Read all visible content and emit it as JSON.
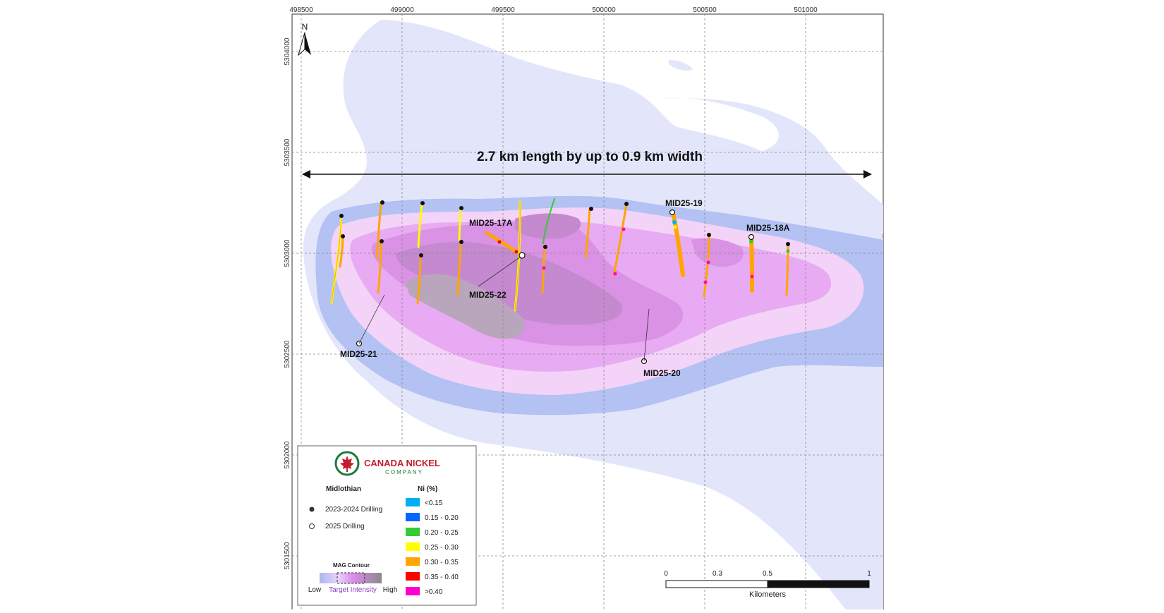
{
  "map": {
    "headline": "2.7 km length by up to 0.9 km width",
    "north_label": "N",
    "easting_ticks": [
      "498500",
      "499000",
      "499500",
      "500000",
      "500500",
      "501000"
    ],
    "northing_ticks": [
      "5304000",
      "5303500",
      "5303000",
      "5302500",
      "5302000",
      "5301500"
    ],
    "hole_labels": {
      "h17a": "MID25-17A",
      "h22": "MID25-22",
      "h21": "MID25-21",
      "h20": "MID25-20",
      "h19": "MID25-19",
      "h18a": "MID25-18A"
    }
  },
  "legend": {
    "company_name": "CANADA NICKEL",
    "company_sub": "COMPANY",
    "project": "Midlothian",
    "symbol_2023": "2023-2024 Drilling",
    "symbol_2025": "2025 Drilling",
    "ni_title": "Ni (%)",
    "ni_classes": [
      {
        "label": "<0.15",
        "color": "#00b0f0"
      },
      {
        "label": "0.15 - 0.20",
        "color": "#0066ff"
      },
      {
        "label": "0.20 - 0.25",
        "color": "#33cc33"
      },
      {
        "label": "0.25 - 0.30",
        "color": "#ffff00"
      },
      {
        "label": "0.30 - 0.35",
        "color": "#ffa500"
      },
      {
        "label": "0.35 - 0.40",
        "color": "#ff0000"
      },
      {
        "label": ">0.40",
        "color": "#ff00cc"
      }
    ],
    "mag_title": "MAG Contour",
    "mag_low": "Low",
    "mag_target": "Target Intensity",
    "mag_high": "High"
  },
  "scale_bar": {
    "labels": [
      "0",
      "0.3",
      "0.5",
      "1"
    ],
    "unit": "Kilometers"
  },
  "colors": {
    "mag_lightest": "#e3e6fb",
    "mag_light_blue": "#b3c1f3",
    "mag_pale_pink": "#f3d3f8",
    "mag_pink": "#e8aaf2",
    "mag_mid_pink": "#d992e4",
    "mag_mauve": "#c489cf",
    "mag_grey": "#b9a6bd"
  }
}
